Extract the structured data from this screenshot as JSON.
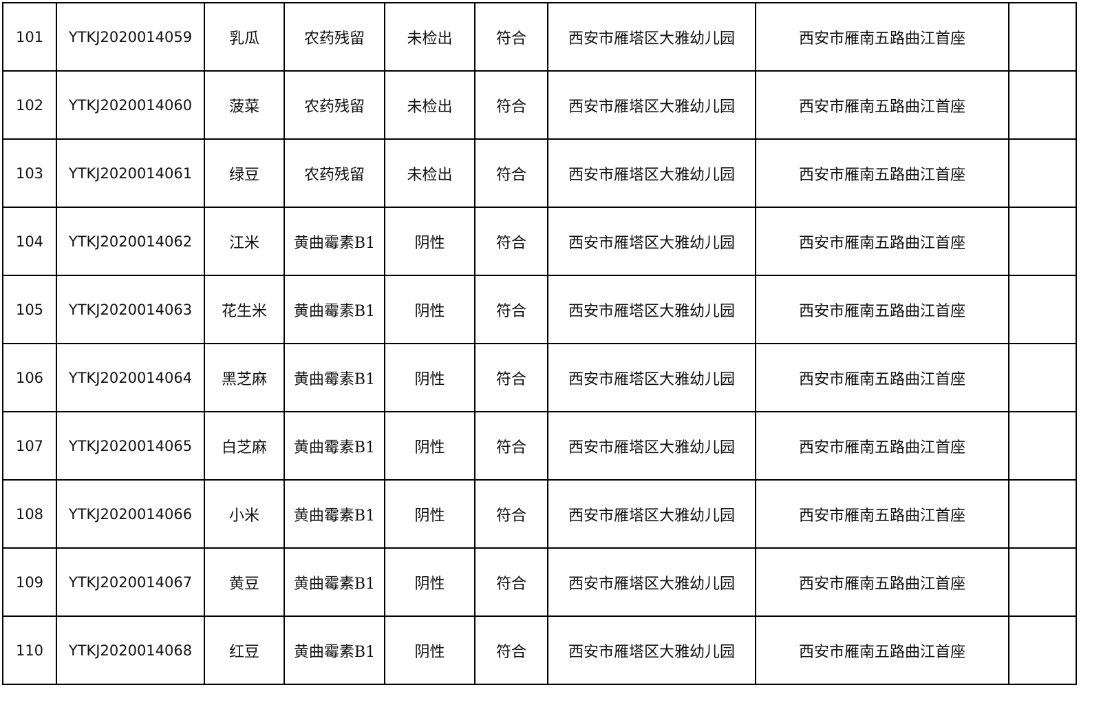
{
  "table": {
    "rows": [
      [
        "101",
        "YTKJ2020014059",
        "乳瓜",
        "农药残留",
        "未检出",
        "符合",
        "西安市雁塔区大雅幼儿园",
        "西安市雁南五路曲江首座",
        ""
      ],
      [
        "102",
        "YTKJ2020014060",
        "菠菜",
        "农药残留",
        "未检出",
        "符合",
        "西安市雁塔区大雅幼儿园",
        "西安市雁南五路曲江首座",
        ""
      ],
      [
        "103",
        "YTKJ2020014061",
        "绿豆",
        "农药残留",
        "未检出",
        "符合",
        "西安市雁塔区大雅幼儿园",
        "西安市雁南五路曲江首座",
        ""
      ],
      [
        "104",
        "YTKJ2020014062",
        "江米",
        "黄曲霉素B1",
        "阴性",
        "符合",
        "西安市雁塔区大雅幼儿园",
        "西安市雁南五路曲江首座",
        ""
      ],
      [
        "105",
        "YTKJ2020014063",
        "花生米",
        "黄曲霉素B1",
        "阴性",
        "符合",
        "西安市雁塔区大雅幼儿园",
        "西安市雁南五路曲江首座",
        ""
      ],
      [
        "106",
        "YTKJ2020014064",
        "黑芝麻",
        "黄曲霉素B1",
        "阴性",
        "符合",
        "西安市雁塔区大雅幼儿园",
        "西安市雁南五路曲江首座",
        ""
      ],
      [
        "107",
        "YTKJ2020014065",
        "白芝麻",
        "黄曲霉素B1",
        "阴性",
        "符合",
        "西安市雁塔区大雅幼儿园",
        "西安市雁南五路曲江首座",
        ""
      ],
      [
        "108",
        "YTKJ2020014066",
        "小米",
        "黄曲霉素B1",
        "阴性",
        "符合",
        "西安市雁塔区大雅幼儿园",
        "西安市雁南五路曲江首座",
        ""
      ],
      [
        "109",
        "YTKJ2020014067",
        "黄豆",
        "黄曲霉素B1",
        "阴性",
        "符合",
        "西安市雁塔区大雅幼儿园",
        "西安市雁南五路曲江首座",
        ""
      ],
      [
        "110",
        "YTKJ2020014068",
        "红豆",
        "黄曲霉素B1",
        "阴性",
        "符合",
        "西安市雁塔区大雅幼儿园",
        "西安市雁南五路曲江首座",
        ""
      ]
    ]
  }
}
